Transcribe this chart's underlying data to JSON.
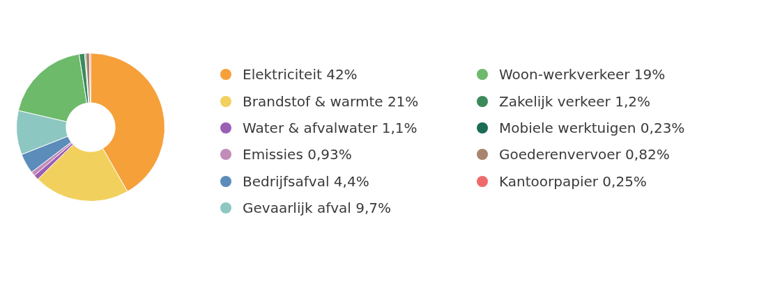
{
  "chart_data": {
    "type": "donut",
    "categories": [
      "Elektriciteit 42%",
      "Brandstof & warmte 21%",
      "Water & afvalwater 1,1%",
      "Emissies 0,93%",
      "Bedrijfsafval 4,4%",
      "Gevaarlijk afval 9,7%",
      "Woon-werkverkeer 19%",
      "Zakelijk verkeer 1,2%",
      "Mobiele werktuigen 0,23%",
      "Goederenvervoer 0,82%",
      "Kantoorpapier 0,25%"
    ],
    "values": [
      42,
      21,
      1.1,
      0.93,
      4.4,
      9.7,
      19,
      1.2,
      0.23,
      0.82,
      0.25
    ],
    "colors": [
      "#f6a03a",
      "#f1d05d",
      "#9b5fb4",
      "#c18cb8",
      "#5b8cba",
      "#8dc7c2",
      "#6dba6a",
      "#3a8a5a",
      "#1b6b55",
      "#a98470",
      "#ee6b6b"
    ],
    "legend": "right"
  }
}
